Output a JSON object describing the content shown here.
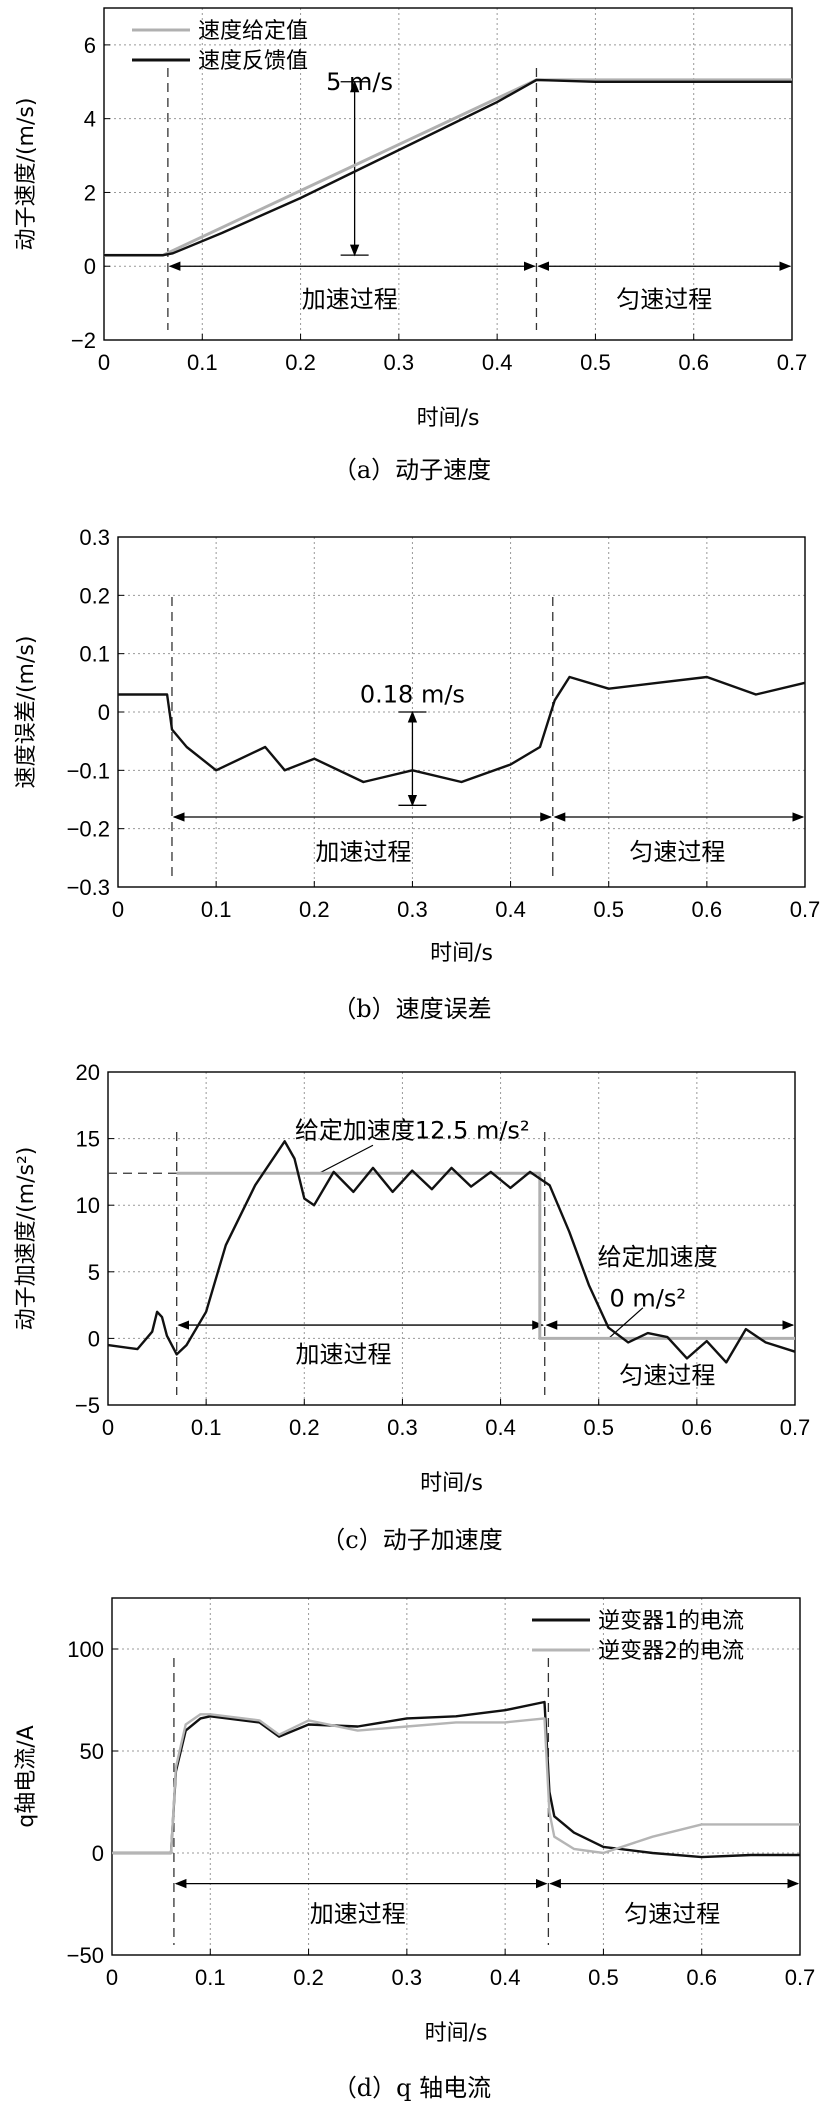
{
  "chart_data": [
    {
      "type": "line",
      "caption": "（a）动子速度",
      "xlabel": "时间/s",
      "ylabel": "动子速度/(m/s)",
      "xlim": [
        0,
        0.7
      ],
      "ylim": [
        -2,
        7
      ],
      "xticks": [
        "0",
        "0.1",
        "0.2",
        "0.3",
        "0.4",
        "0.5",
        "0.6",
        "0.7"
      ],
      "yticks": [
        "−2",
        "0",
        "2",
        "4",
        "6"
      ],
      "ytick_values": [
        -2,
        0,
        2,
        4,
        6
      ],
      "grid": true,
      "legend_position": "top-left",
      "series": [
        {
          "name": "速度给定值",
          "color": "#b0b0b0",
          "x": [
            0,
            0.06,
            0.44,
            0.7
          ],
          "y": [
            0.3,
            0.3,
            5.05,
            5.05
          ]
        },
        {
          "name": "速度反馈值",
          "color": "#111111",
          "x": [
            0,
            0.06,
            0.07,
            0.12,
            0.2,
            0.25,
            0.3,
            0.35,
            0.4,
            0.44,
            0.5,
            0.6,
            0.7
          ],
          "y": [
            0.3,
            0.3,
            0.35,
            0.9,
            1.85,
            2.5,
            3.15,
            3.8,
            4.45,
            5.05,
            5.0,
            5.0,
            5.0
          ]
        }
      ],
      "annotations": [
        {
          "text": "5 m/s",
          "x": 0.26,
          "y": 5.0
        },
        {
          "text": "加速过程",
          "x": 0.25,
          "y": -0.9
        },
        {
          "text": "匀速过程",
          "x": 0.57,
          "y": -0.9
        }
      ],
      "markers": {
        "vlines": [
          0.065,
          0.44
        ],
        "arrow_y": 0,
        "dim_x": 0.255,
        "dim_y": [
          0.3,
          5.0
        ]
      }
    },
    {
      "type": "line",
      "caption": "（b）速度误差",
      "xlabel": "时间/s",
      "ylabel": "速度误差/(m/s)",
      "xlim": [
        0,
        0.7
      ],
      "ylim": [
        -0.3,
        0.3
      ],
      "xticks": [
        "0",
        "0.1",
        "0.2",
        "0.3",
        "0.4",
        "0.5",
        "0.6",
        "0.7"
      ],
      "yticks": [
        "−0.3",
        "−0.2",
        "−0.1",
        "0",
        "0.1",
        "0.2",
        "0.3"
      ],
      "ytick_values": [
        -0.3,
        -0.2,
        -0.1,
        0,
        0.1,
        0.2,
        0.3
      ],
      "grid": true,
      "series": [
        {
          "name": "",
          "color": "#111111",
          "x": [
            0,
            0.05,
            0.055,
            0.07,
            0.1,
            0.15,
            0.17,
            0.2,
            0.25,
            0.3,
            0.35,
            0.4,
            0.43,
            0.445,
            0.46,
            0.5,
            0.55,
            0.6,
            0.65,
            0.7
          ],
          "y": [
            0.03,
            0.03,
            -0.03,
            -0.06,
            -0.1,
            -0.06,
            -0.1,
            -0.08,
            -0.12,
            -0.1,
            -0.12,
            -0.09,
            -0.06,
            0.02,
            0.06,
            0.04,
            0.05,
            0.06,
            0.03,
            0.05
          ]
        }
      ],
      "annotations": [
        {
          "text": "0.18 m/s",
          "x": 0.3,
          "y": 0.03
        },
        {
          "text": "加速过程",
          "x": 0.25,
          "y": -0.24
        },
        {
          "text": "匀速过程",
          "x": 0.57,
          "y": -0.24
        }
      ],
      "markers": {
        "vlines": [
          0.055,
          0.443
        ],
        "arrow_y": -0.18,
        "dim_x": 0.3,
        "dim_y": [
          -0.16,
          0.0
        ]
      }
    },
    {
      "type": "line",
      "caption": "（c）动子加速度",
      "xlabel": "时间/s",
      "ylabel": "动子加速度/(m/s²)",
      "xlim": [
        0,
        0.7
      ],
      "ylim": [
        -5,
        20
      ],
      "xticks": [
        "0",
        "0.1",
        "0.2",
        "0.3",
        "0.4",
        "0.5",
        "0.6",
        "0.7"
      ],
      "yticks": [
        "−5",
        "0",
        "5",
        "10",
        "15",
        "20"
      ],
      "ytick_values": [
        -5,
        0,
        5,
        10,
        15,
        20
      ],
      "grid": true,
      "series": [
        {
          "name": "",
          "color": "#b0b0b0",
          "x": [
            0.07,
            0.44,
            0.44,
            0.7
          ],
          "y": [
            12.4,
            12.4,
            0,
            0
          ]
        },
        {
          "name": "",
          "color": "#111111",
          "x": [
            0,
            0.03,
            0.045,
            0.05,
            0.055,
            0.06,
            0.07,
            0.08,
            0.1,
            0.12,
            0.15,
            0.18,
            0.19,
            0.2,
            0.21,
            0.23,
            0.25,
            0.27,
            0.29,
            0.31,
            0.33,
            0.35,
            0.37,
            0.39,
            0.41,
            0.43,
            0.44,
            0.45,
            0.47,
            0.49,
            0.51,
            0.53,
            0.55,
            0.57,
            0.59,
            0.61,
            0.63,
            0.65,
            0.67,
            0.7
          ],
          "y": [
            -0.5,
            -0.8,
            0.5,
            2.0,
            1.6,
            0.2,
            -1.2,
            -0.5,
            2.0,
            7.0,
            11.5,
            14.8,
            13.5,
            10.5,
            10.0,
            12.5,
            11.0,
            12.8,
            11.0,
            12.6,
            11.2,
            12.8,
            11.4,
            12.5,
            11.3,
            12.5,
            12.0,
            11.5,
            8.0,
            4.0,
            0.8,
            -0.3,
            0.4,
            0.1,
            -1.5,
            -0.2,
            -1.8,
            0.7,
            -0.3,
            -1.0
          ]
        }
      ],
      "annotations": [
        {
          "text": "给定加速度12.5 m/s²",
          "x": 0.31,
          "y": 15.6
        },
        {
          "text": "给定加速度",
          "x": 0.56,
          "y": 6.1
        },
        {
          "text": "0 m/s²",
          "x": 0.55,
          "y": 3.0
        },
        {
          "text": "加速过程",
          "x": 0.24,
          "y": -1.2
        },
        {
          "text": "匀速过程",
          "x": 0.57,
          "y": -2.8
        }
      ],
      "markers": {
        "vlines": [
          0.07,
          0.445
        ],
        "hline_y": 12.4,
        "arrow_y": 1.0
      }
    },
    {
      "type": "line",
      "caption": "（d）q 轴电流",
      "xlabel": "时间/s",
      "ylabel": "q轴电流/A",
      "xlim": [
        0,
        0.7
      ],
      "ylim": [
        -50,
        125
      ],
      "xticks": [
        "0",
        "0.1",
        "0.2",
        "0.3",
        "0.4",
        "0.5",
        "0.6",
        "0.7"
      ],
      "yticks": [
        "−50",
        "0",
        "50",
        "100"
      ],
      "ytick_values": [
        -50,
        0,
        50,
        100
      ],
      "grid": true,
      "legend_position": "top-right",
      "series": [
        {
          "name": "逆变器1的电流",
          "color": "#111111",
          "x": [
            0,
            0.06,
            0.065,
            0.075,
            0.09,
            0.1,
            0.15,
            0.17,
            0.2,
            0.25,
            0.3,
            0.35,
            0.4,
            0.44,
            0.445,
            0.45,
            0.47,
            0.5,
            0.55,
            0.6,
            0.65,
            0.7
          ],
          "y": [
            0,
            0,
            40,
            60,
            66,
            67,
            64,
            57,
            63,
            62,
            66,
            67,
            70,
            74,
            30,
            18,
            10,
            3,
            0,
            -2,
            -1,
            -1
          ]
        },
        {
          "name": "逆变器2的电流",
          "color": "#b5b5b5",
          "x": [
            0,
            0.06,
            0.065,
            0.075,
            0.09,
            0.1,
            0.15,
            0.17,
            0.2,
            0.25,
            0.3,
            0.35,
            0.4,
            0.44,
            0.445,
            0.45,
            0.47,
            0.5,
            0.55,
            0.6,
            0.65,
            0.7
          ],
          "y": [
            0,
            0,
            42,
            63,
            68,
            68,
            65,
            58,
            65,
            60,
            62,
            64,
            64,
            66,
            20,
            8,
            2,
            0,
            8,
            14,
            14,
            14
          ]
        }
      ],
      "annotations": [
        {
          "text": "加速过程",
          "x": 0.25,
          "y": -30
        },
        {
          "text": "匀速过程",
          "x": 0.57,
          "y": -30
        }
      ],
      "markers": {
        "vlines": [
          0.063,
          0.444
        ],
        "arrow_y": -15
      }
    }
  ]
}
